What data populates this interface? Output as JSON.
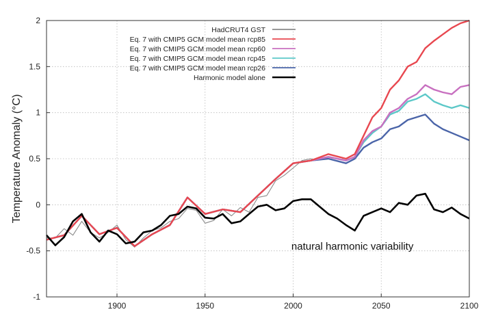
{
  "chart_data": {
    "type": "line",
    "title": "",
    "xlabel": "",
    "ylabel": "Temperature Anomaly (°C)",
    "xlim": [
      1860,
      2100
    ],
    "ylim": [
      -1,
      2
    ],
    "x_ticks": [
      1900,
      1950,
      2000,
      2050,
      2100
    ],
    "y_ticks": [
      -1,
      -0.5,
      0,
      0.5,
      1,
      1.5,
      2
    ],
    "y_tick_labels": [
      "-1",
      "-0.5",
      "0",
      "0.5",
      "1",
      "1.5",
      "2"
    ],
    "grid": true,
    "legend_position": "top-right",
    "annotations": [
      {
        "text": "natural harmonic variability",
        "x": 1999,
        "y": -0.45
      }
    ],
    "series": [
      {
        "name": "HadCRUT4 GST",
        "color": "#8a8a8a",
        "x": [
          1860,
          1865,
          1870,
          1875,
          1880,
          1885,
          1890,
          1895,
          1900,
          1905,
          1910,
          1915,
          1920,
          1925,
          1930,
          1935,
          1940,
          1945,
          1950,
          1955,
          1960,
          1965,
          1970,
          1975,
          1980,
          1985,
          1990,
          1995,
          2000,
          2005,
          2010,
          2013
        ],
        "y": [
          -0.36,
          -0.36,
          -0.26,
          -0.33,
          -0.18,
          -0.3,
          -0.36,
          -0.3,
          -0.22,
          -0.38,
          -0.46,
          -0.36,
          -0.28,
          -0.25,
          -0.18,
          -0.15,
          -0.04,
          -0.06,
          -0.2,
          -0.17,
          -0.05,
          -0.12,
          -0.03,
          -0.08,
          0.08,
          0.1,
          0.26,
          0.32,
          0.4,
          0.48,
          0.5,
          0.48
        ]
      },
      {
        "name": "Eq. 7 with CMIP5 GCM model mean rcp85",
        "color": "#e8474f",
        "x": [
          1860,
          1870,
          1880,
          1890,
          1900,
          1910,
          1920,
          1930,
          1940,
          1950,
          1960,
          1970,
          1980,
          1990,
          2000,
          2010,
          2020,
          2030,
          2035,
          2040,
          2045,
          2050,
          2055,
          2060,
          2065,
          2070,
          2075,
          2080,
          2085,
          2090,
          2095,
          2100
        ],
        "y": [
          -0.38,
          -0.33,
          -0.12,
          -0.32,
          -0.25,
          -0.45,
          -0.32,
          -0.22,
          0.08,
          -0.1,
          -0.05,
          -0.08,
          0.1,
          0.28,
          0.45,
          0.48,
          0.55,
          0.5,
          0.55,
          0.75,
          0.95,
          1.05,
          1.25,
          1.35,
          1.5,
          1.55,
          1.7,
          1.78,
          1.85,
          1.92,
          1.97,
          2.0
        ]
      },
      {
        "name": "Eq. 7 with CMIP5 GCM model mean rcp60",
        "color": "#c870c0",
        "x": [
          1860,
          1870,
          1880,
          1890,
          1900,
          1910,
          1920,
          1930,
          1940,
          1950,
          1960,
          1970,
          1980,
          1990,
          2000,
          2010,
          2020,
          2030,
          2035,
          2040,
          2045,
          2050,
          2055,
          2060,
          2065,
          2070,
          2075,
          2080,
          2085,
          2090,
          2095,
          2100
        ],
        "y": [
          -0.38,
          -0.33,
          -0.12,
          -0.32,
          -0.25,
          -0.45,
          -0.32,
          -0.22,
          0.08,
          -0.1,
          -0.05,
          -0.08,
          0.1,
          0.28,
          0.45,
          0.48,
          0.52,
          0.48,
          0.52,
          0.7,
          0.8,
          0.85,
          1.0,
          1.05,
          1.15,
          1.2,
          1.3,
          1.25,
          1.22,
          1.2,
          1.28,
          1.3
        ]
      },
      {
        "name": "Eq. 7 with CMIP5 GCM model mean rcp45",
        "color": "#5cc8c8",
        "x": [
          1860,
          1870,
          1880,
          1890,
          1900,
          1910,
          1920,
          1930,
          1940,
          1950,
          1960,
          1970,
          1980,
          1990,
          2000,
          2010,
          2020,
          2030,
          2035,
          2040,
          2045,
          2050,
          2055,
          2060,
          2065,
          2070,
          2075,
          2080,
          2085,
          2090,
          2095,
          2100
        ],
        "y": [
          -0.38,
          -0.33,
          -0.12,
          -0.32,
          -0.25,
          -0.45,
          -0.32,
          -0.22,
          0.08,
          -0.1,
          -0.05,
          -0.08,
          0.1,
          0.28,
          0.45,
          0.48,
          0.52,
          0.48,
          0.52,
          0.68,
          0.78,
          0.85,
          0.98,
          1.02,
          1.12,
          1.15,
          1.2,
          1.12,
          1.08,
          1.05,
          1.08,
          1.05
        ]
      },
      {
        "name": "Eq. 7 with CMIP5 GCM model mean rcp26",
        "color": "#4a64a8",
        "x": [
          1860,
          1870,
          1880,
          1890,
          1900,
          1910,
          1920,
          1930,
          1940,
          1950,
          1960,
          1970,
          1980,
          1990,
          2000,
          2010,
          2020,
          2030,
          2035,
          2040,
          2045,
          2050,
          2055,
          2060,
          2065,
          2070,
          2075,
          2080,
          2085,
          2090,
          2095,
          2100
        ],
        "y": [
          -0.38,
          -0.33,
          -0.12,
          -0.32,
          -0.25,
          -0.45,
          -0.32,
          -0.22,
          0.08,
          -0.1,
          -0.05,
          -0.08,
          0.1,
          0.28,
          0.45,
          0.48,
          0.5,
          0.45,
          0.5,
          0.62,
          0.68,
          0.72,
          0.82,
          0.85,
          0.92,
          0.95,
          0.98,
          0.88,
          0.82,
          0.78,
          0.74,
          0.7
        ]
      },
      {
        "name": "Harmonic model alone",
        "color": "#000000",
        "x": [
          1860,
          1865,
          1870,
          1875,
          1880,
          1885,
          1890,
          1895,
          1900,
          1905,
          1910,
          1915,
          1920,
          1925,
          1930,
          1935,
          1940,
          1945,
          1950,
          1955,
          1960,
          1965,
          1970,
          1975,
          1980,
          1985,
          1990,
          1995,
          2000,
          2005,
          2010,
          2015,
          2020,
          2025,
          2030,
          2035,
          2040,
          2045,
          2050,
          2055,
          2060,
          2065,
          2070,
          2075,
          2080,
          2085,
          2090,
          2095,
          2100
        ],
        "y": [
          -0.33,
          -0.44,
          -0.35,
          -0.18,
          -0.1,
          -0.3,
          -0.4,
          -0.28,
          -0.32,
          -0.42,
          -0.4,
          -0.3,
          -0.28,
          -0.22,
          -0.12,
          -0.1,
          -0.02,
          -0.04,
          -0.14,
          -0.15,
          -0.1,
          -0.2,
          -0.18,
          -0.1,
          -0.02,
          0.0,
          -0.06,
          -0.04,
          0.04,
          0.06,
          0.06,
          -0.02,
          -0.1,
          -0.15,
          -0.22,
          -0.28,
          -0.12,
          -0.08,
          -0.04,
          -0.08,
          0.02,
          0.0,
          0.1,
          0.12,
          -0.05,
          -0.08,
          -0.03,
          -0.1,
          -0.15
        ]
      }
    ]
  }
}
